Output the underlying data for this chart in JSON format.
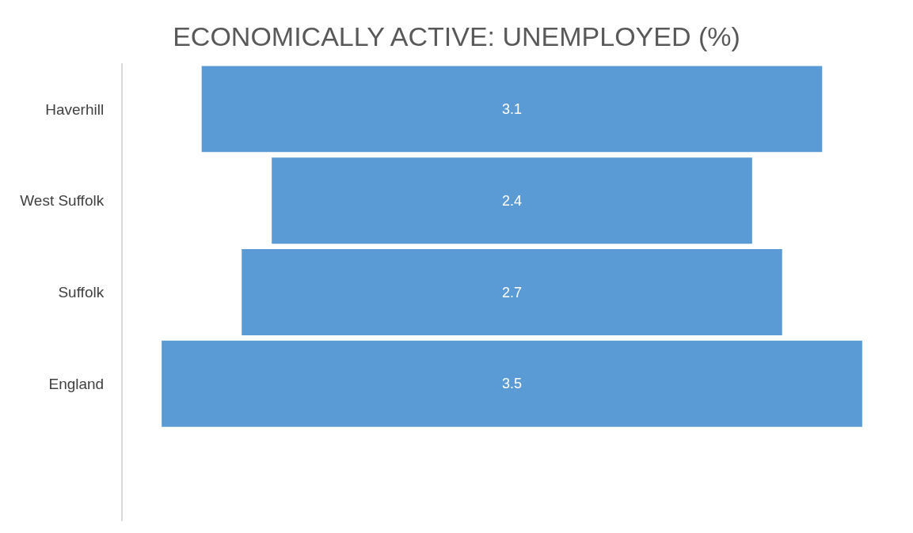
{
  "chart_data": {
    "type": "other",
    "title": "ECONOMICALLY ACTIVE: UNEMPLOYED (%)",
    "categories": [
      "Haverhill",
      "West Suffolk",
      "Suffolk",
      "England"
    ],
    "values": [
      3.1,
      2.4,
      2.7,
      3.5
    ],
    "color": "#5b9bd5",
    "data_labels": true
  }
}
